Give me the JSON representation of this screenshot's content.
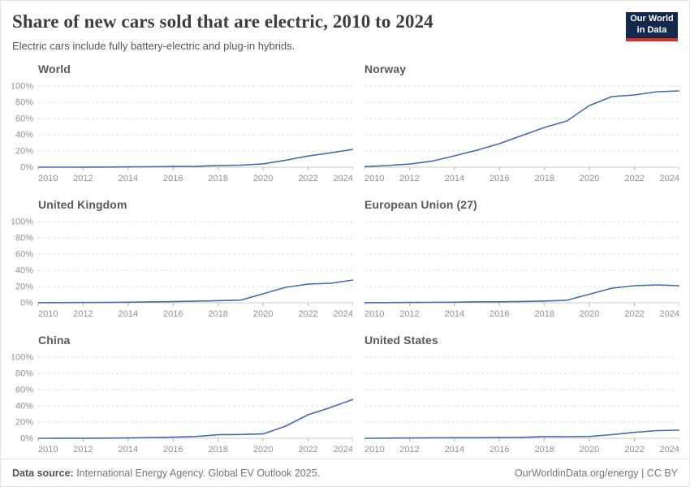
{
  "header": {
    "title": "Share of new cars sold that are electric, 2010 to 2024",
    "subtitle": "Electric cars include fully battery-electric and plug-in hybrids.",
    "logo": {
      "line1": "Our World",
      "line2": "in Data"
    }
  },
  "footer": {
    "datasource_label": "Data source:",
    "datasource_text": " International Energy Agency. Global EV Outlook 2025.",
    "credit": "OurWorldinData.org/energy | CC BY"
  },
  "colors": {
    "line": "#4a69a8",
    "grid": "#dcdcdc",
    "axis": "#c9c9c9",
    "tick": "#b3b3b3",
    "axis_label": "#919191",
    "chart_title": "#5a5a5a",
    "logo_navy": "#12294d",
    "logo_red": "#d1332a"
  },
  "chart_data": {
    "type": "line",
    "layout": "6 small multiples, 2 columns x 3 rows; y-axis labels only on left column",
    "x": [
      2010,
      2011,
      2012,
      2013,
      2014,
      2015,
      2016,
      2017,
      2018,
      2019,
      2020,
      2021,
      2022,
      2023,
      2024
    ],
    "x_ticks": [
      2010,
      2012,
      2014,
      2016,
      2018,
      2020,
      2022,
      2024
    ],
    "y_ticks": [
      0,
      20,
      40,
      60,
      80,
      100
    ],
    "y_tick_suffix": "%",
    "ylim": [
      0,
      100
    ],
    "grid": "horizontal dashed",
    "series": [
      {
        "name": "World",
        "values": [
          0.01,
          0.05,
          0.1,
          0.2,
          0.4,
          0.6,
          0.8,
          1.1,
          2.1,
          2.5,
          4.1,
          8.6,
          13.8,
          17.7,
          22
        ]
      },
      {
        "name": "Norway",
        "values": [
          0.7,
          2,
          3.9,
          7.4,
          14,
          21,
          29,
          39,
          49,
          57,
          76,
          87,
          89,
          93,
          94
        ]
      },
      {
        "name": "United Kingdom",
        "values": [
          0.1,
          0.2,
          0.3,
          0.4,
          0.7,
          1.1,
          1.4,
          1.9,
          2.6,
          3.2,
          11,
          19,
          23,
          24,
          28
        ]
      },
      {
        "name": "European Union (27)",
        "values": [
          0.1,
          0.2,
          0.4,
          0.5,
          0.7,
          1.2,
          1.2,
          1.6,
          2.1,
          3.1,
          10.5,
          18,
          21,
          22,
          21
        ]
      },
      {
        "name": "China",
        "values": [
          0.01,
          0.1,
          0.1,
          0.2,
          0.4,
          1,
          1.4,
          2.2,
          4.4,
          4.7,
          5.4,
          15,
          29,
          38,
          48
        ]
      },
      {
        "name": "United States",
        "values": [
          0.02,
          0.2,
          0.4,
          0.6,
          0.7,
          0.7,
          0.9,
          1.2,
          2.1,
          2,
          2.3,
          4.5,
          7.3,
          9.5,
          10
        ]
      }
    ]
  }
}
